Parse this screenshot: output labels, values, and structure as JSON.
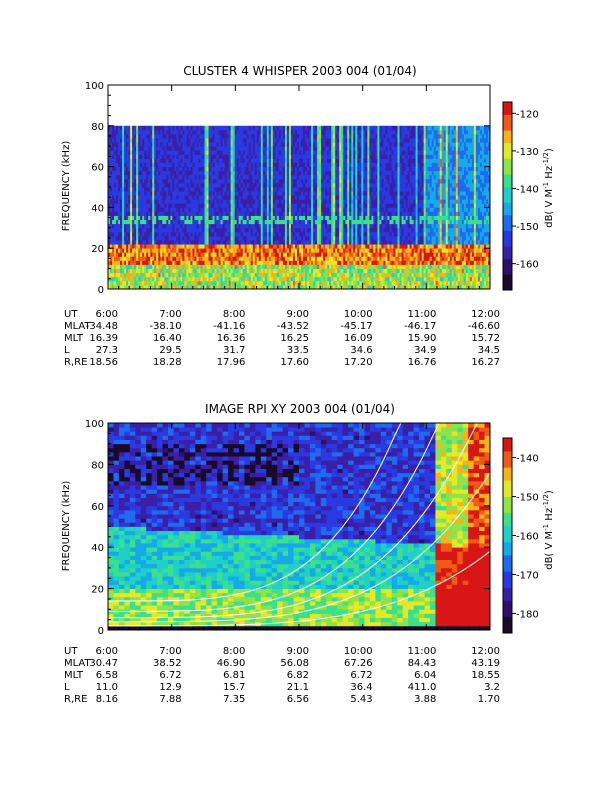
{
  "page_colors": {
    "background": "#ffffff",
    "axes": "#000000",
    "overlay_curves": "#ffffff",
    "colorbar_outline": "#000000"
  },
  "colormap": [
    "#1a0a2a",
    "#2e0f6e",
    "#3a1fa8",
    "#2a3ae0",
    "#1f6aef",
    "#16a9e8",
    "#20d0c8",
    "#3ae08a",
    "#8ee24a",
    "#e2e82a",
    "#f6b21a",
    "#ef5a14",
    "#d81616"
  ],
  "chart_data": [
    {
      "type": "heatmap",
      "title": "CLUSTER 4 WHISPER 2003 004 (01/04)",
      "ylabel": "FREQUENCY (kHz)",
      "ylim": [
        0,
        100
      ],
      "yticks": [
        "0",
        "20",
        "40",
        "60",
        "80",
        "100"
      ],
      "x_ticks": [
        "6:00",
        "7:00",
        "8:00",
        "9:00",
        "10:00",
        "11:00",
        "12:00"
      ],
      "data_top_khz": 80,
      "colorbar": {
        "label": "dB( V M$^{-1}$ Hz$^{-1/2}$)",
        "label_main": "dB( V M",
        "label_sup1": "-1",
        "label_mid": " Hz",
        "label_sup2": "-1/2",
        "label_end": ")",
        "ticks": [
          "-120",
          "-130",
          "-140",
          "-150",
          "-160"
        ],
        "range": [
          -167,
          -117
        ]
      },
      "orbit_table": [
        {
          "label": "UT",
          "values": [
            "6:00",
            "7:00",
            "8:00",
            "9:00",
            "10:00",
            "11:00",
            "12:00"
          ]
        },
        {
          "label": "MLAT",
          "values": [
            "-34.48",
            "-38.10",
            "-41.16",
            "-43.52",
            "-45.17",
            "-46.17",
            "-46.60"
          ]
        },
        {
          "label": "MLT",
          "values": [
            "16.39",
            "16.40",
            "16.36",
            "16.25",
            "16.09",
            "15.90",
            "15.72"
          ]
        },
        {
          "label": "L",
          "values": [
            "27.3",
            "29.5",
            "31.7",
            "33.5",
            "34.6",
            "34.9",
            "34.5"
          ]
        },
        {
          "label": "R,RE",
          "values": [
            "18.56",
            "18.28",
            "17.96",
            "17.60",
            "17.20",
            "16.76",
            "16.27"
          ]
        }
      ]
    },
    {
      "type": "heatmap",
      "title": "IMAGE RPI XY 2003 004 (01/04)",
      "ylabel": "FREQUENCY (kHz)",
      "ylim": [
        0,
        100
      ],
      "yticks": [
        "0",
        "20",
        "40",
        "60",
        "80",
        "100"
      ],
      "x_ticks": [
        "6:00",
        "7:00",
        "8:00",
        "9:00",
        "10:00",
        "11:00",
        "12:00"
      ],
      "colorbar": {
        "label": "dB( V M$^{-1}$ Hz$^{-1/2}$)",
        "label_main": "dB( V M",
        "label_sup1": "-1",
        "label_mid": " Hz",
        "label_sup2": "-1/2",
        "label_end": ")",
        "ticks": [
          "-140",
          "-150",
          "-160",
          "-170",
          "-180"
        ],
        "range": [
          -185,
          -135
        ]
      },
      "orbit_table": [
        {
          "label": "UT",
          "values": [
            "6:00",
            "7:00",
            "8:00",
            "9:00",
            "10:00",
            "11:00",
            "12:00"
          ]
        },
        {
          "label": "MLAT",
          "values": [
            "30.47",
            "38.52",
            "46.90",
            "56.08",
            "67.26",
            "84.43",
            "43.19"
          ]
        },
        {
          "label": "MLT",
          "values": [
            "6.58",
            "6.72",
            "6.81",
            "6.82",
            "6.72",
            "6.04",
            "18.55"
          ]
        },
        {
          "label": "L",
          "values": [
            "11.0",
            "12.9",
            "15.7",
            "21.1",
            "36.4",
            "411.0",
            "3.2"
          ]
        },
        {
          "label": "R,RE",
          "values": [
            "8.16",
            "7.88",
            "7.35",
            "6.56",
            "5.43",
            "3.88",
            "1.70"
          ]
        }
      ]
    }
  ]
}
